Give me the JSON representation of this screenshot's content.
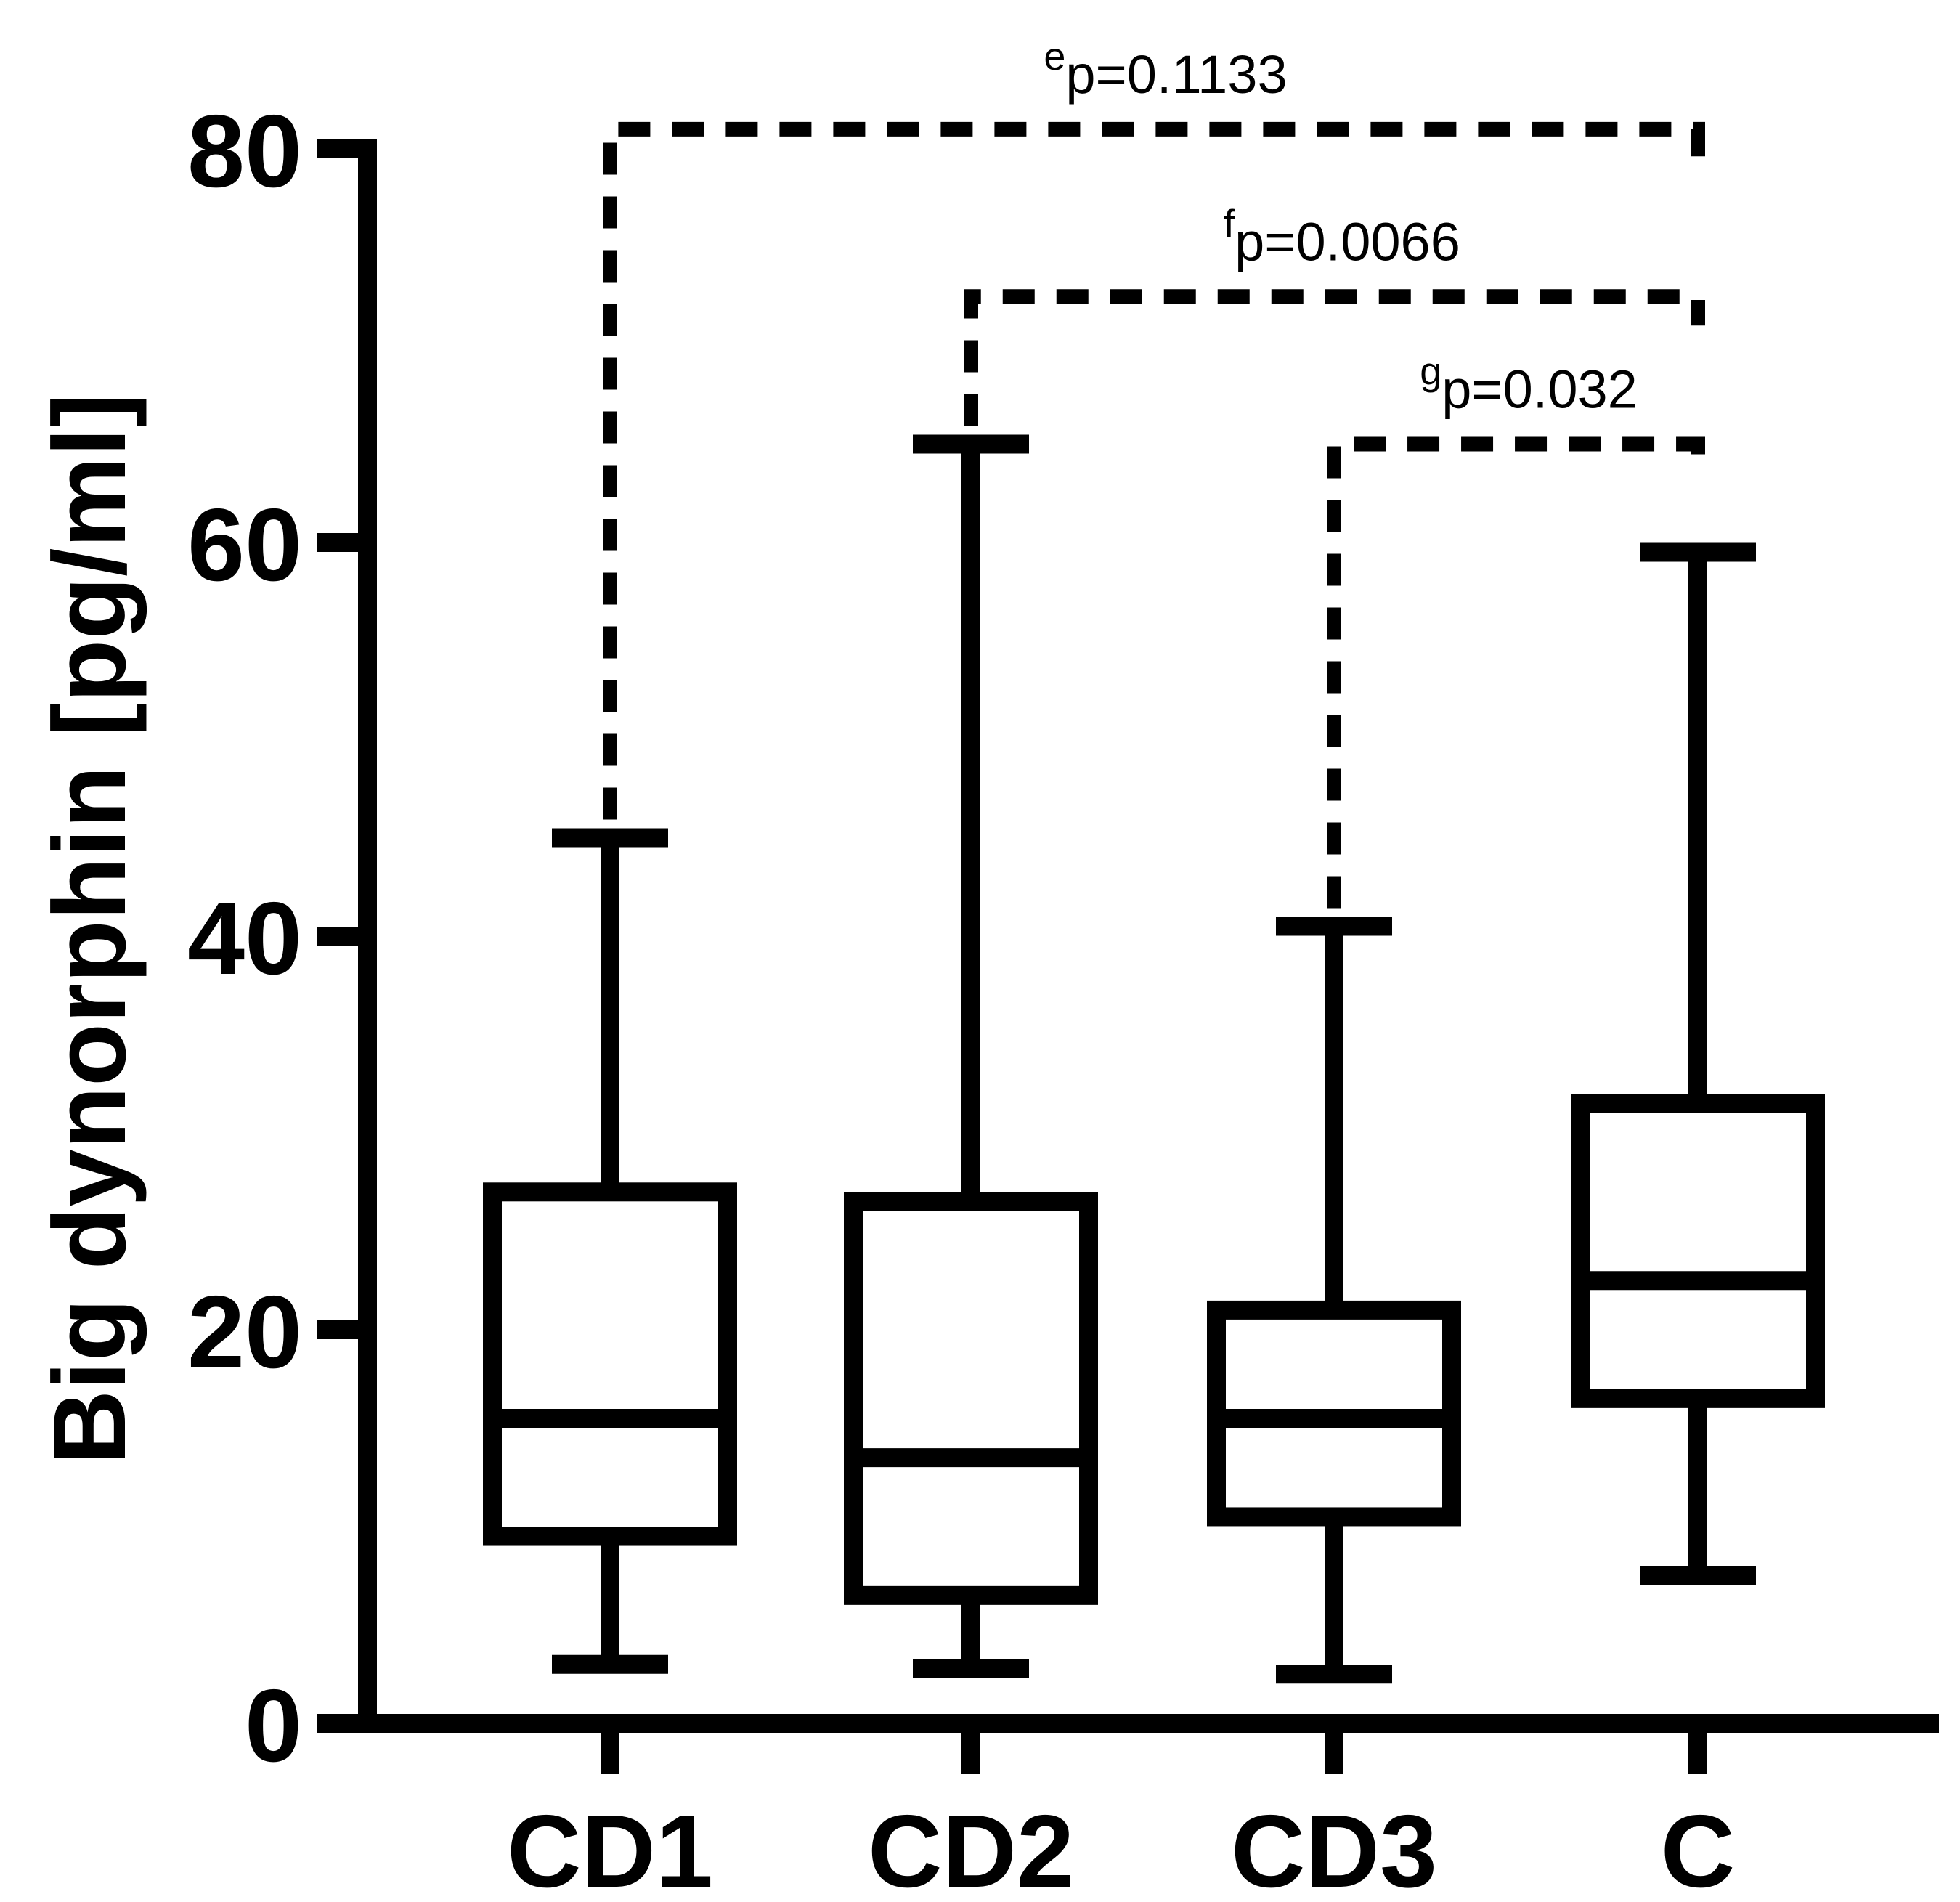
{
  "chart_data": {
    "type": "box",
    "title": "",
    "xlabel": "",
    "ylabel": "Big dynorphin [pg/ml]",
    "ylim": [
      0,
      80
    ],
    "yticks": [
      "0",
      "20",
      "40",
      "60",
      "80"
    ],
    "categories": [
      "CD1",
      "CD2",
      "CD3",
      "C"
    ],
    "boxes": [
      {
        "name": "CD1",
        "whisker_low": 3,
        "q1": 9.5,
        "median": 15.5,
        "q3": 27,
        "whisker_high": 45
      },
      {
        "name": "CD2",
        "whisker_low": 2.8,
        "q1": 6.5,
        "median": 13.5,
        "q3": 26.5,
        "whisker_high": 65
      },
      {
        "name": "CD3",
        "whisker_low": 2.5,
        "q1": 10.5,
        "median": 15.5,
        "q3": 21,
        "whisker_high": 40.5
      },
      {
        "name": "C",
        "whisker_low": 7.5,
        "q1": 16.5,
        "median": 22.5,
        "q3": 31.5,
        "whisker_high": 59.5
      }
    ],
    "comparisons": [
      {
        "from": "CD1",
        "to": "C",
        "superscript": "e",
        "label": "p=0.1133",
        "bracket_level": 81
      },
      {
        "from": "CD2",
        "to": "C",
        "superscript": "f",
        "label": "p=0.0066",
        "bracket_level": 72.5
      },
      {
        "from": "CD3",
        "to": "C",
        "superscript": "g",
        "label": "p=0.032",
        "bracket_level": 65
      }
    ]
  }
}
